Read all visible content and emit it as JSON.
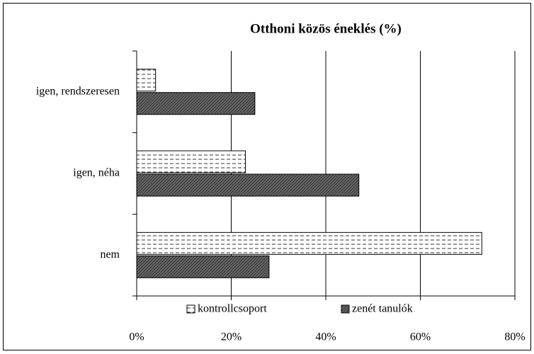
{
  "chart_data": {
    "type": "barh",
    "title": "Otthoni közös éneklés (%)",
    "categories": [
      "igen, rendszeresen",
      "igen, néha",
      "nem"
    ],
    "series": [
      {
        "name": "kontrollcsoport",
        "color": "#ffffff",
        "values": [
          4,
          23,
          73
        ]
      },
      {
        "name": "zenét tanulók",
        "color": "#666666",
        "values": [
          25,
          47,
          28
        ]
      }
    ],
    "xlim": [
      0,
      80
    ],
    "xticks": [
      {
        "value": 0,
        "label": "0%"
      },
      {
        "value": 20,
        "label": "20%"
      },
      {
        "value": 40,
        "label": "40%"
      },
      {
        "value": 60,
        "label": "60%"
      },
      {
        "value": 80,
        "label": "80%"
      }
    ],
    "grid": true,
    "legend": "bottom"
  }
}
